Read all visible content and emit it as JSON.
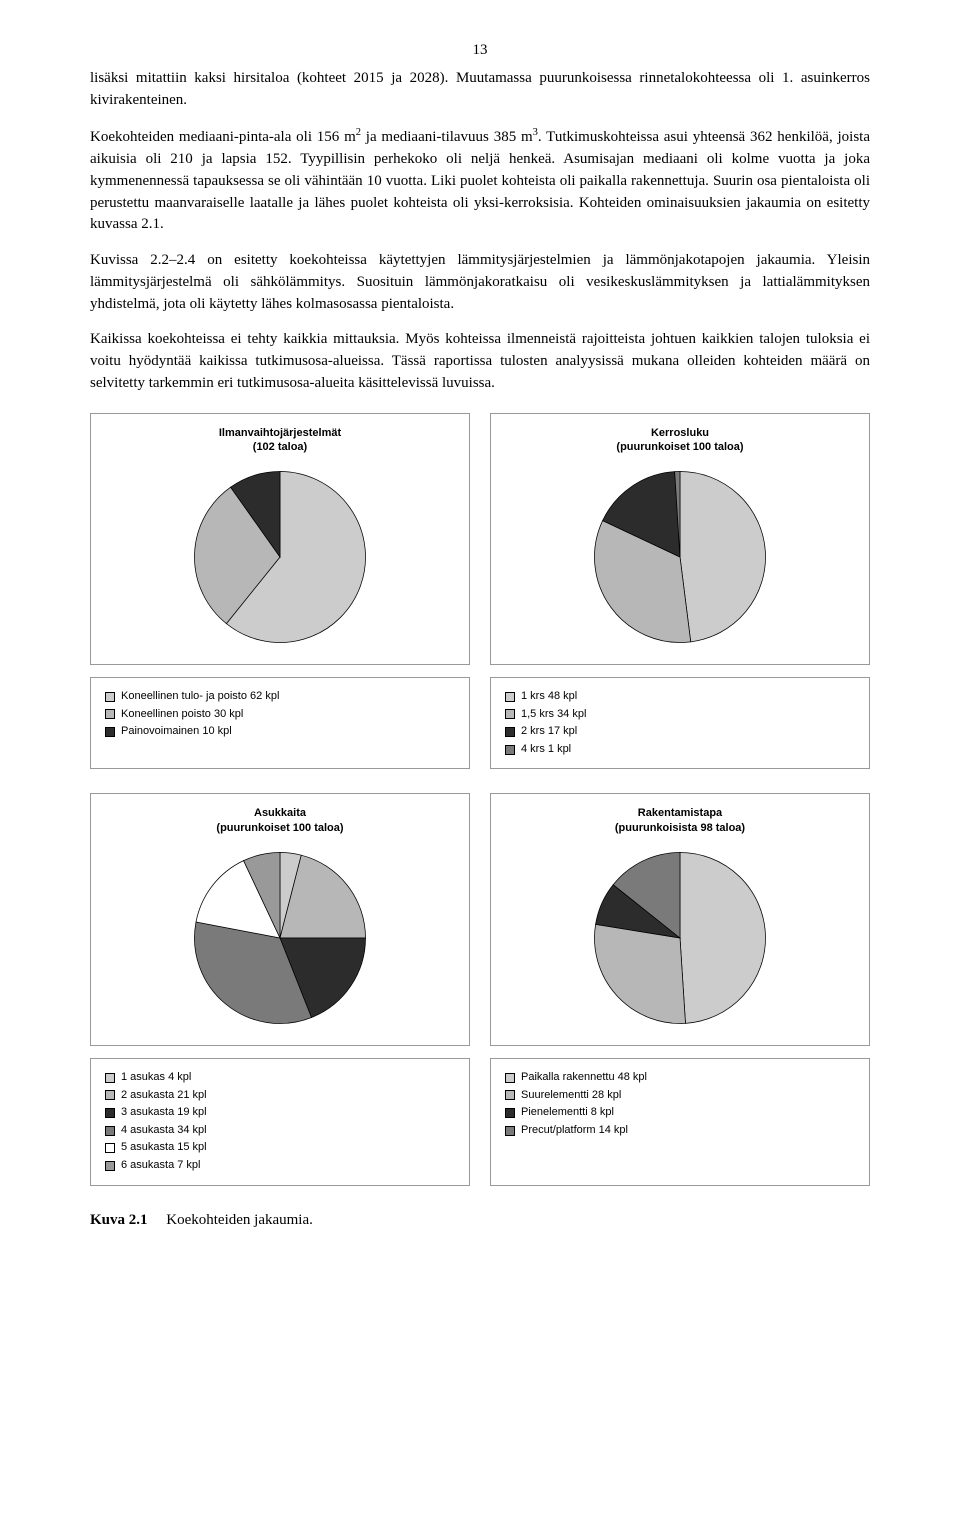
{
  "page_number": "13",
  "paragraphs": {
    "p1": "lisäksi mitattiin kaksi hirsitaloa (kohteet 2015 ja 2028). Muutamassa puurunkoisessa rinnetalokohteessa oli 1. asuinkerros kivirakenteinen.",
    "p2a": "Koekohteiden mediaani-pinta-ala oli 156 m",
    "p2sup1": "2",
    "p2b": " ja mediaani-tilavuus 385 m",
    "p2sup2": "3",
    "p2c": ". Tutkimuskohteissa asui yhteensä 362 henkilöä, joista aikuisia oli 210 ja lapsia 152. Tyypillisin perhekoko oli neljä henkeä. Asumisajan mediaani oli kolme vuotta ja joka kymmenennessä tapauksessa se oli vähintään 10 vuotta. Liki puolet kohteista oli paikalla rakennettuja. Suurin osa pientaloista oli perustettu maanvaraiselle laatalle ja lähes puolet kohteista oli yksi-kerroksisia. Kohteiden ominaisuuksien jakaumia on esitetty kuvassa 2.1.",
    "p3": "Kuvissa 2.2–2.4 on esitetty koekohteissa käytettyjen lämmitysjärjestelmien ja lämmönjakotapojen jakaumia. Yleisin lämmitysjärjestelmä oli sähkölämmitys. Suosituin lämmönjakoratkaisu oli vesikeskuslämmityksen ja lattialämmityksen yhdistelmä, jota oli käytetty lähes kolmasosassa pientaloista.",
    "p4": "Kaikissa koekohteissa ei tehty kaikkia mittauksia. Myös kohteissa ilmenneistä rajoitteista johtuen kaikkien talojen tuloksia ei voitu hyödyntää kaikissa tutkimusosa-alueissa. Tässä raportissa tulosten analyysissä mukana olleiden kohteiden määrä on selvitetty tarkemmin eri tutkimusosa-alueita käsittelevissä luvuissa."
  },
  "chart1": {
    "type": "pie",
    "title": "Ilmanvaihtojärjestelmät\n(102 taloa)",
    "slices": [
      {
        "label": "Koneellinen tulo- ja poisto 62 kpl",
        "value": 62,
        "color": "#cccccc"
      },
      {
        "label": "Koneellinen poisto 30 kpl",
        "value": 30,
        "color": "#b7b7b7"
      },
      {
        "label": "Painovoimainen 10 kpl",
        "value": 10,
        "color": "#2c2c2c"
      }
    ]
  },
  "chart2": {
    "type": "pie",
    "title": "Kerrosluku\n(puurunkoiset 100 taloa)",
    "slices": [
      {
        "label": "1 krs 48 kpl",
        "value": 48,
        "color": "#cccccc"
      },
      {
        "label": "1,5 krs 34 kpl",
        "value": 34,
        "color": "#b7b7b7"
      },
      {
        "label": "2 krs 17 kpl",
        "value": 17,
        "color": "#2c2c2c"
      },
      {
        "label": "4 krs 1 kpl",
        "value": 1,
        "color": "#7a7a7a"
      }
    ]
  },
  "chart3": {
    "type": "pie",
    "title": "Asukkaita\n(puurunkoiset 100 taloa)",
    "slices": [
      {
        "label": "1 asukas 4 kpl",
        "value": 4,
        "color": "#cccccc"
      },
      {
        "label": "2 asukasta 21 kpl",
        "value": 21,
        "color": "#b7b7b7"
      },
      {
        "label": "3 asukasta 19 kpl",
        "value": 19,
        "color": "#2c2c2c"
      },
      {
        "label": "4 asukasta 34 kpl",
        "value": 34,
        "color": "#7a7a7a"
      },
      {
        "label": "5 asukasta 15 kpl",
        "value": 15,
        "color": "#ffffff"
      },
      {
        "label": "6 asukasta 7 kpl",
        "value": 7,
        "color": "#999999"
      }
    ]
  },
  "chart4": {
    "type": "pie",
    "title": "Rakentamistapa\n(puurunkoisista 98 taloa)",
    "slices": [
      {
        "label": "Paikalla rakennettu 48 kpl",
        "value": 48,
        "color": "#cccccc"
      },
      {
        "label": "Suurelementti 28 kpl",
        "value": 28,
        "color": "#b7b7b7"
      },
      {
        "label": "Pienelementti 8 kpl",
        "value": 8,
        "color": "#2c2c2c"
      },
      {
        "label": "Precut/platform 14 kpl",
        "value": 14,
        "color": "#7a7a7a"
      }
    ]
  },
  "caption": {
    "label": "Kuva 2.1",
    "text": "Koekohteiden jakaumia."
  }
}
